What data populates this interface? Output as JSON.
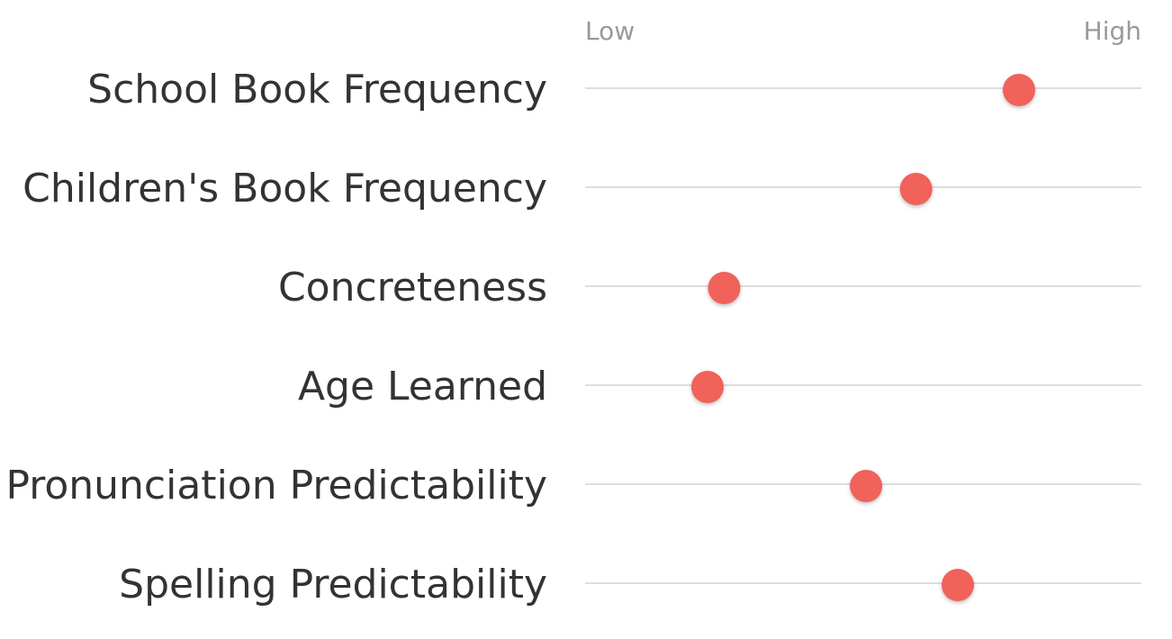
{
  "scale": {
    "low_label": "Low",
    "high_label": "High"
  },
  "chart_data": {
    "type": "scatter",
    "title": "",
    "xlabel": "",
    "ylabel": "",
    "xlim": [
      0,
      1
    ],
    "grid": false,
    "legend": "none",
    "dot_color": "#f0625a",
    "categories": [
      "School Book Frequency",
      "Children's Book Frequency",
      "Concreteness",
      "Age Learned",
      "Pronunciation Predictability",
      "Spelling Predictability"
    ],
    "values": [
      0.78,
      0.595,
      0.25,
      0.22,
      0.505,
      0.67
    ]
  }
}
